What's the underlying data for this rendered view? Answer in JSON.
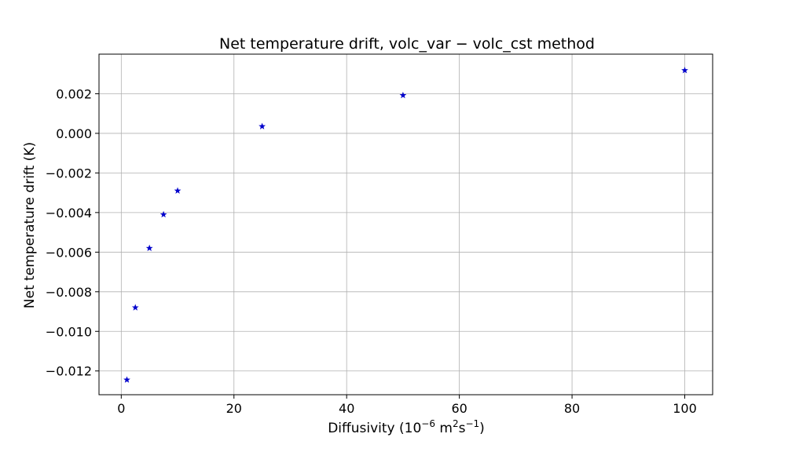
{
  "chart_data": {
    "type": "scatter",
    "title": "Net temperature drift, volc_var − volc_cst method",
    "xlabel": "Diffusivity (10⁻⁶ m²s⁻¹)",
    "xlabel_parts": {
      "prefix": "Diffusivity (10",
      "exp1": "−6",
      "mid": " m",
      "exp2": "2",
      "s": "s",
      "exp3": "−1",
      "suffix": ")"
    },
    "ylabel": "Net temperature drift (K)",
    "xlim": [
      -3.95,
      104.95
    ],
    "ylim": [
      -0.0132,
      0.004
    ],
    "grid": true,
    "marker": "star",
    "color": "#0000cc",
    "x_ticks": [
      0,
      20,
      40,
      60,
      80,
      100
    ],
    "x_tick_labels": [
      "0",
      "20",
      "40",
      "60",
      "80",
      "100"
    ],
    "y_ticks": [
      -0.012,
      -0.01,
      -0.008,
      -0.006,
      -0.004,
      -0.002,
      0.0,
      0.002
    ],
    "y_tick_labels": [
      "−0.012",
      "−0.010",
      "−0.008",
      "−0.006",
      "−0.004",
      "−0.002",
      "0.000",
      "0.002"
    ],
    "series": [
      {
        "x": [
          1,
          2.5,
          5,
          7.5,
          10,
          25,
          50,
          100
        ],
        "y": [
          -0.01245,
          -0.0088,
          -0.0058,
          -0.0041,
          -0.0029,
          0.00035,
          0.00192,
          0.00318
        ]
      }
    ]
  }
}
